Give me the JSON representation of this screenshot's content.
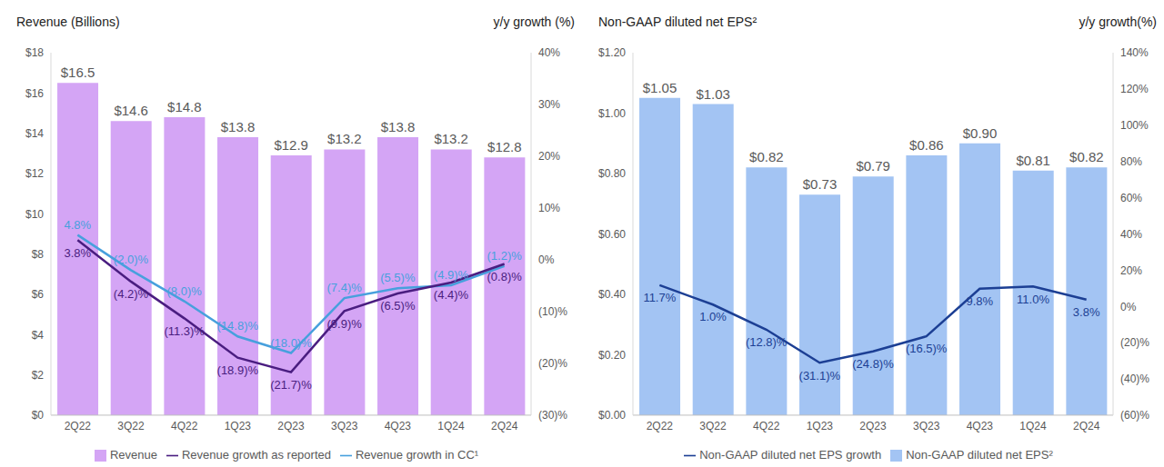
{
  "chart_data": [
    {
      "type": "bar",
      "y_label": "Revenue (Billions)",
      "y2_label": "y/y growth (%)",
      "categories": [
        "2Q22",
        "3Q22",
        "4Q22",
        "1Q23",
        "2Q23",
        "3Q23",
        "4Q23",
        "1Q24",
        "2Q24"
      ],
      "series": [
        {
          "name": "Revenue",
          "type": "bar",
          "color": "#d4a5f5",
          "values": [
            16.5,
            14.6,
            14.8,
            13.8,
            12.9,
            13.2,
            13.8,
            13.2,
            12.8
          ],
          "value_labels": [
            "$16.5",
            "$14.6",
            "$14.8",
            "$13.8",
            "$12.9",
            "$13.2",
            "$13.8",
            "$13.2",
            "$12.8"
          ]
        },
        {
          "name": "Revenue growth in CC¹",
          "type": "line",
          "axis": "y2",
          "color": "#47a0dd",
          "marker": "none",
          "values": [
            4.8,
            -2.0,
            -8.0,
            -14.8,
            -18.0,
            -7.4,
            -5.5,
            -4.9,
            -1.2
          ],
          "value_labels": [
            "4.8%",
            "(2.0)%",
            "(8.0)%",
            "(14.8)%",
            "(18.0)%",
            "(7.4)%",
            "(5.5)%",
            "(4.9)%",
            "(1.2)%"
          ]
        },
        {
          "name": "Revenue growth as reported",
          "type": "line",
          "axis": "y2",
          "color": "#4a1d80",
          "marker": "none",
          "values": [
            3.8,
            -4.2,
            -11.3,
            -18.9,
            -21.7,
            -9.9,
            -6.5,
            -4.4,
            -0.8
          ],
          "value_labels": [
            "3.8%",
            "(4.2)%",
            "(11.3)%",
            "(18.9)%",
            "(21.7)%",
            "(9.9)%",
            "(6.5)%",
            "(4.4)%",
            "(0.8)%"
          ]
        }
      ],
      "ylim": [
        0,
        18
      ],
      "yticks": [
        {
          "value": 0,
          "label": "$0"
        },
        {
          "value": 2,
          "label": "$2"
        },
        {
          "value": 4,
          "label": "$4"
        },
        {
          "value": 6,
          "label": "$6"
        },
        {
          "value": 8,
          "label": "$8"
        },
        {
          "value": 10,
          "label": "$10"
        },
        {
          "value": 12,
          "label": "$12"
        },
        {
          "value": 14,
          "label": "$14"
        },
        {
          "value": 16,
          "label": "$16"
        },
        {
          "value": 18,
          "label": "$18"
        }
      ],
      "y2lim": [
        -30,
        40
      ],
      "y2ticks": [
        {
          "value": -30,
          "label": "(30)%"
        },
        {
          "value": -20,
          "label": "(20)%"
        },
        {
          "value": -10,
          "label": "(10)%"
        },
        {
          "value": 0,
          "label": "0%"
        },
        {
          "value": 10,
          "label": "10%"
        },
        {
          "value": 20,
          "label": "20%"
        },
        {
          "value": 30,
          "label": "30%"
        },
        {
          "value": 40,
          "label": "40%"
        }
      ],
      "grid": false,
      "legend": "bottom",
      "data_labels": true
    },
    {
      "type": "bar",
      "y_label": "Non-GAAP diluted net EPS²",
      "y2_label": "y/y growth(%)",
      "categories": [
        "2Q22",
        "3Q22",
        "4Q22",
        "1Q23",
        "2Q23",
        "3Q23",
        "4Q23",
        "1Q24",
        "2Q24"
      ],
      "series": [
        {
          "name": "Non-GAAP diluted net EPS²",
          "type": "bar",
          "color": "#a3c4f3",
          "values": [
            1.05,
            1.03,
            0.82,
            0.73,
            0.79,
            0.86,
            0.9,
            0.81,
            0.82
          ],
          "value_labels": [
            "$1.05",
            "$1.03",
            "$0.82",
            "$0.73",
            "$0.79",
            "$0.86",
            "$0.90",
            "$0.81",
            "$0.82"
          ]
        },
        {
          "name": "Non-GAAP diluted net EPS growth",
          "type": "line",
          "axis": "y2",
          "color": "#1c3f94",
          "marker": "none",
          "values": [
            11.7,
            1.0,
            -12.8,
            -31.1,
            -24.8,
            -16.5,
            9.8,
            11.0,
            3.8
          ],
          "value_labels": [
            "11.7%",
            "1.0%",
            "(12.8)%",
            "(31.1)%",
            "(24.8)%",
            "(16.5)%",
            "9.8%",
            "11.0%",
            "3.8%"
          ]
        }
      ],
      "ylim": [
        0,
        1.2
      ],
      "yticks": [
        {
          "value": 0,
          "label": "$0.00"
        },
        {
          "value": 0.2,
          "label": "$0.20"
        },
        {
          "value": 0.4,
          "label": "$0.40"
        },
        {
          "value": 0.6,
          "label": "$0.60"
        },
        {
          "value": 0.8,
          "label": "$0.80"
        },
        {
          "value": 1,
          "label": "$1.00"
        },
        {
          "value": 1.2,
          "label": "$1.20"
        }
      ],
      "y2lim": [
        -60,
        140
      ],
      "y2ticks": [
        {
          "value": -60,
          "label": "(60)%"
        },
        {
          "value": -40,
          "label": "(40)%"
        },
        {
          "value": -20,
          "label": "(20)%"
        },
        {
          "value": 0,
          "label": "0%"
        },
        {
          "value": 20,
          "label": "20%"
        },
        {
          "value": 40,
          "label": "40%"
        },
        {
          "value": 60,
          "label": "60%"
        },
        {
          "value": 80,
          "label": "80%"
        },
        {
          "value": 100,
          "label": "100%"
        },
        {
          "value": 120,
          "label": "120%"
        },
        {
          "value": 140,
          "label": "140%"
        }
      ],
      "grid": false,
      "legend": "bottom",
      "data_labels": true
    }
  ]
}
